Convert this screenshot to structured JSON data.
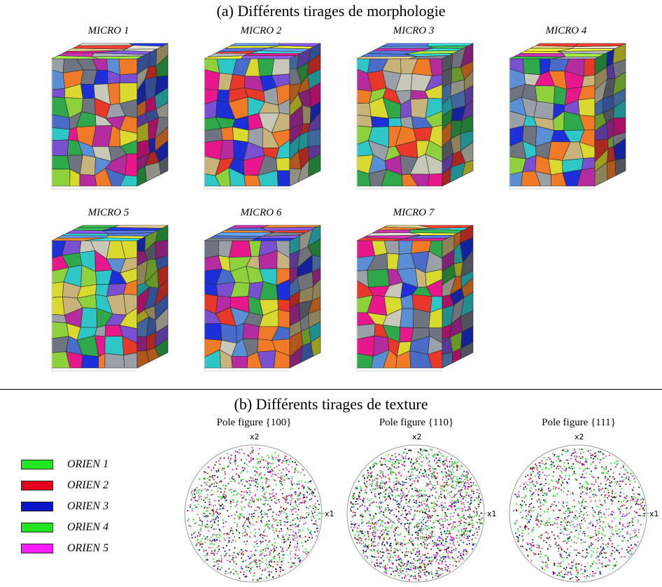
{
  "section_a": {
    "title": "(a) Différents tirages de morphologie"
  },
  "micros": [
    {
      "label": "MICRO 1"
    },
    {
      "label": "MICRO 2"
    },
    {
      "label": "MICRO 3"
    },
    {
      "label": "MICRO 4"
    },
    {
      "label": "MICRO 5"
    },
    {
      "label": "MICRO 6"
    },
    {
      "label": "MICRO 7"
    }
  ],
  "section_b": {
    "title": "(b) Différents tirages de texture"
  },
  "legend": [
    {
      "label": "ORIEN 1",
      "color": "#22e622"
    },
    {
      "label": "ORIEN 2",
      "color": "#e6001e"
    },
    {
      "label": "ORIEN 3",
      "color": "#0a14c8"
    },
    {
      "label": "ORIEN 4",
      "color": "#22e622"
    },
    {
      "label": "ORIEN 5",
      "color": "#ff1aff"
    }
  ],
  "pole_figures": [
    {
      "title": "Pole figure {100}",
      "x_axis": "x1",
      "y_axis": "x2"
    },
    {
      "title": "Pole figure {110}",
      "x_axis": "x1",
      "y_axis": "x2"
    },
    {
      "title": "Pole figure {111}",
      "x_axis": "x1",
      "y_axis": "x2"
    }
  ],
  "grain_palette": [
    "#e8188c",
    "#2ea84a",
    "#7a4fd0",
    "#c8b47a",
    "#9aa0a8",
    "#5a8fd6",
    "#d9d930",
    "#1c2fd8",
    "#e8382a",
    "#8fd13c",
    "#b52ca0",
    "#6e7480",
    "#c8c8b8",
    "#2ec6c6",
    "#f07a28",
    "#4a6cc8"
  ]
}
